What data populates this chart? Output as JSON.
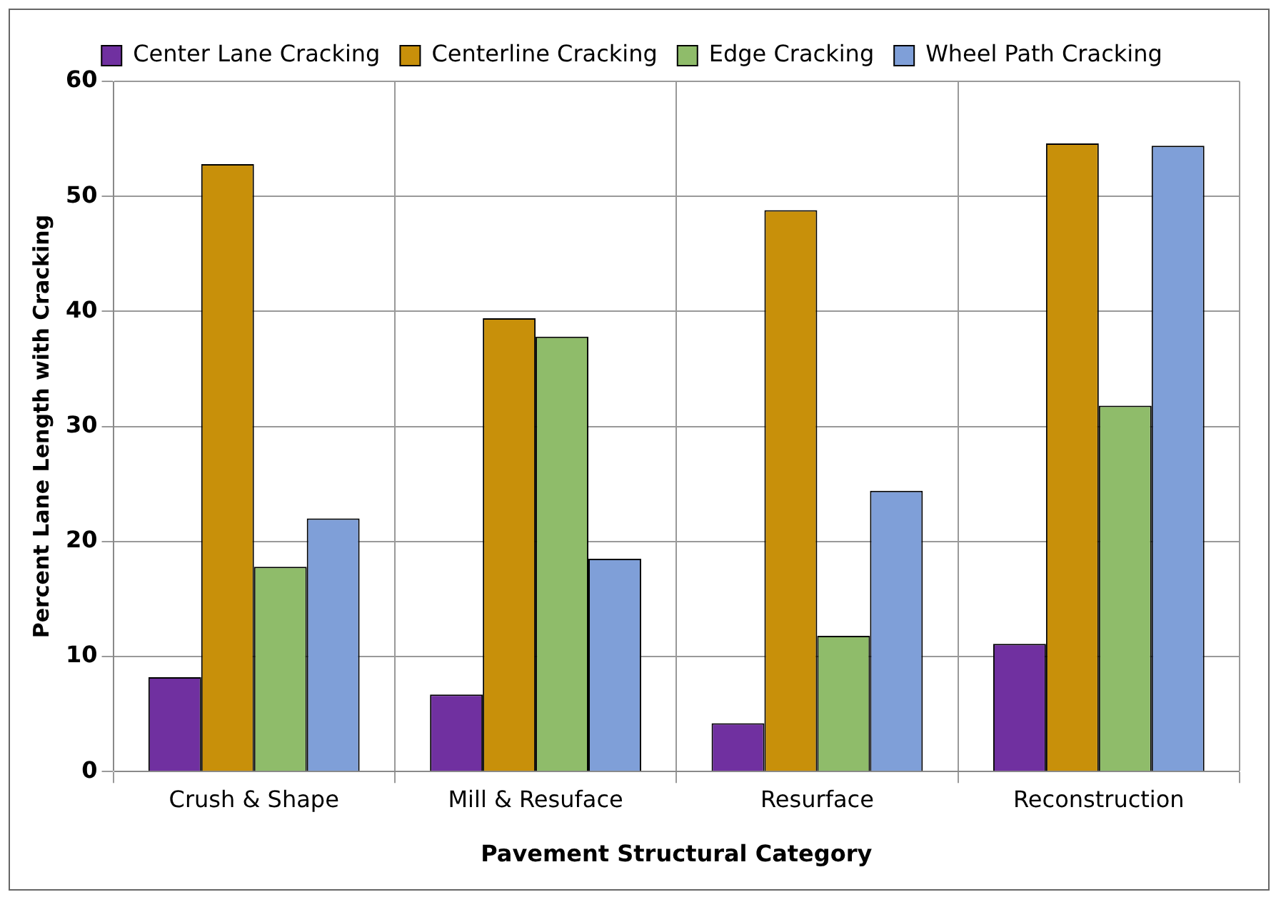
{
  "chart_data": {
    "type": "bar",
    "xlabel": "Pavement Structural Category",
    "ylabel": "Percent Lane Length with Cracking",
    "categories": [
      "Crush & Shape",
      "Mill & Resuface",
      "Resurface",
      "Reconstruction"
    ],
    "series": [
      {
        "name": "Center Lane Cracking",
        "color": "#7030a0",
        "values": [
          8.2,
          6.7,
          4.2,
          11.1
        ]
      },
      {
        "name": "Centerline Cracking",
        "color": "#c8900a",
        "values": [
          52.8,
          39.4,
          48.8,
          54.6
        ]
      },
      {
        "name": "Edge Cracking",
        "color": "#8fbc6a",
        "values": [
          17.8,
          37.8,
          11.8,
          31.8
        ]
      },
      {
        "name": "Wheel Path Cracking",
        "color": "#7f9fd8",
        "values": [
          22,
          18.5,
          24.4,
          54.4
        ]
      }
    ],
    "ylim": [
      0,
      60
    ],
    "yticks": [
      0,
      10,
      20,
      30,
      40,
      50,
      60
    ],
    "grid": true,
    "legend": "top"
  }
}
